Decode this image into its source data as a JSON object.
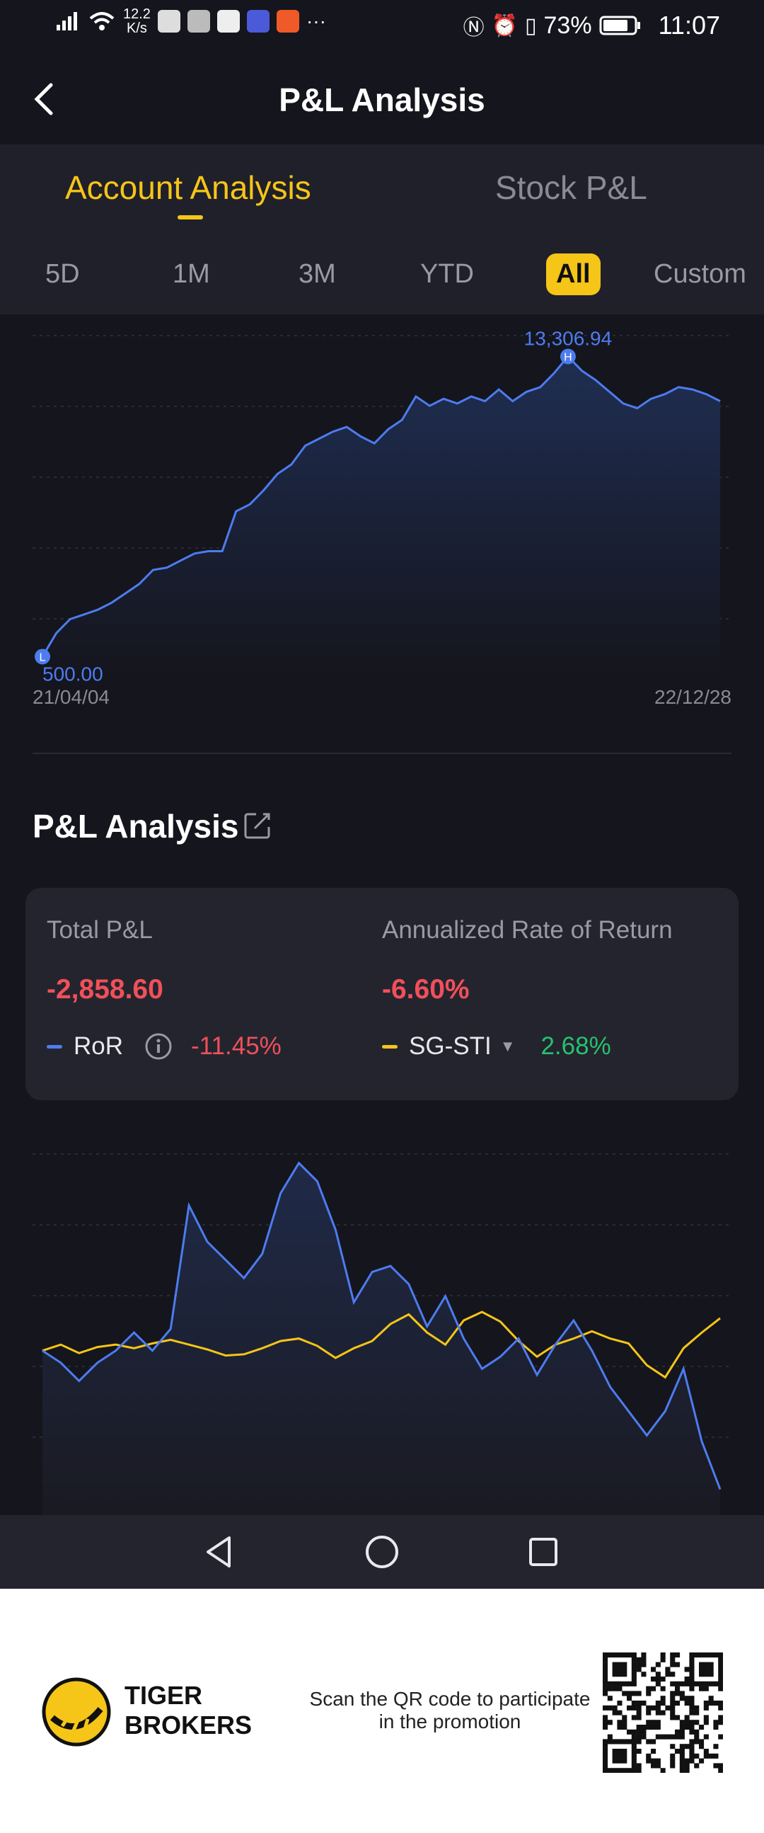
{
  "status_bar": {
    "speed": "12.2",
    "speed_unit": "K/s",
    "battery": "73%",
    "time": "11:07"
  },
  "header": {
    "title": "P&L Analysis"
  },
  "tabs": {
    "account": "Account Analysis",
    "stock": "Stock P&L"
  },
  "ranges": [
    "5D",
    "1M",
    "3M",
    "YTD",
    "All",
    "Custom"
  ],
  "active_range": "All",
  "section": {
    "title": "P&L Analysis"
  },
  "summary": {
    "total_label": "Total P&L",
    "total_value": "-2,858.60",
    "annual_label": "Annualized Rate of Return",
    "annual_value": "-6.60%",
    "ror_label": "RoR",
    "ror_value": "-11.45%",
    "bench_label": "SG-STI",
    "bench_value": "2.68%"
  },
  "colors": {
    "accent": "#f5c518",
    "blue": "#4d7cf0",
    "negative": "#f0505a",
    "positive": "#25c26e"
  },
  "footer": {
    "brand_line1": "TIGER",
    "brand_line2": "BROKERS",
    "promo": "Scan the QR code to participate in the promotion"
  },
  "chart_data": [
    {
      "type": "area",
      "x_start": "21/04/04",
      "x_end": "22/12/28",
      "high_label": "13,306.94",
      "low_label": "500.00",
      "high_marker": "H",
      "low_marker": "L",
      "ylim": [
        0,
        14500
      ],
      "series": [
        {
          "values": [
            500,
            1500,
            2100,
            2300,
            2500,
            2800,
            3200,
            3600,
            4200,
            4300,
            4600,
            4900,
            5000,
            5000,
            6700,
            7000,
            7600,
            8300,
            8700,
            9500,
            9800,
            10100,
            10300,
            9900,
            9600,
            10200,
            10600,
            11600,
            11200,
            11500,
            11300,
            11600,
            11400,
            11900,
            11400,
            11800,
            12000,
            12600,
            13306.94,
            12700,
            12300,
            11800,
            11300,
            11100,
            11500,
            11700,
            12000,
            11900,
            11700,
            11400
          ]
        }
      ]
    },
    {
      "type": "line",
      "series": [
        {
          "name": "RoR",
          "values": [
            0.0,
            -1.0,
            -2.5,
            -1.0,
            0.0,
            1.5,
            0.0,
            1.8,
            12.0,
            9.0,
            7.5,
            6.0,
            8.0,
            13.0,
            15.5,
            14.0,
            10.0,
            4.0,
            6.5,
            7.0,
            5.5,
            2.0,
            4.5,
            1.0,
            -1.5,
            -0.5,
            1.0,
            -2.0,
            0.5,
            2.5,
            0.0,
            -3.0,
            -5.0,
            -7.0,
            -5.0,
            -1.5,
            -7.5,
            -11.45
          ]
        },
        {
          "name": "SG-STI",
          "values": [
            0.0,
            0.5,
            -0.2,
            0.3,
            0.5,
            0.2,
            0.6,
            0.9,
            0.5,
            0.1,
            -0.4,
            -0.3,
            0.2,
            0.8,
            1.0,
            0.4,
            -0.6,
            0.2,
            0.8,
            2.2,
            3.0,
            1.5,
            0.5,
            2.5,
            3.2,
            2.4,
            0.8,
            -0.5,
            0.5,
            1.0,
            1.6,
            1.0,
            0.6,
            -1.2,
            -2.2,
            0.2,
            1.5,
            2.68
          ]
        }
      ]
    }
  ]
}
